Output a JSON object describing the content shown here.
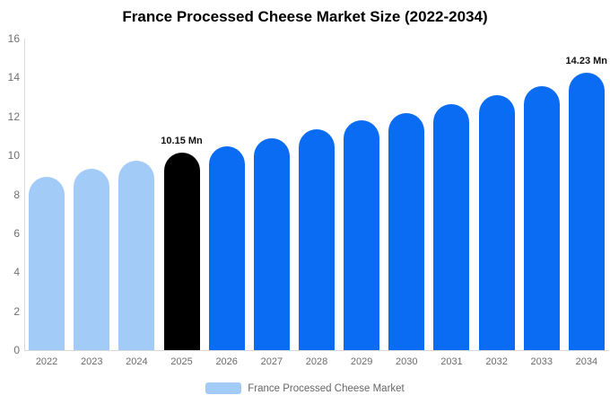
{
  "header": {
    "title": "France Processed Cheese Market Size (2022-2034)"
  },
  "legend": {
    "label": "France Processed Cheese Market",
    "swatch_color": "#A2CBF8"
  },
  "colors": {
    "past_bar": "#A2CBF8",
    "highlight_bar": "#000000",
    "forecast_bar": "#0A6CF3",
    "axis_line": "#D9D9D9",
    "y_tick_label": "#707070",
    "x_tick_label": "#6B6B6B",
    "data_label": "#111111",
    "legend_text": "#666666",
    "background": "#FFFFFF"
  },
  "chart_data": {
    "type": "bar",
    "title": "France Processed Cheese Market Size (2022-2034)",
    "categories": [
      "2022",
      "2023",
      "2024",
      "2025",
      "2026",
      "2027",
      "2028",
      "2029",
      "2030",
      "2031",
      "2032",
      "2033",
      "2034"
    ],
    "values": [
      8.9,
      9.32,
      9.74,
      10.15,
      10.47,
      10.88,
      11.32,
      11.8,
      12.19,
      12.63,
      13.11,
      13.57,
      14.23
    ],
    "unit": "Mn",
    "bar_colors": [
      "#A2CBF8",
      "#A2CBF8",
      "#A2CBF8",
      "#000000",
      "#0A6CF3",
      "#0A6CF3",
      "#0A6CF3",
      "#0A6CF3",
      "#0A6CF3",
      "#0A6CF3",
      "#0A6CF3",
      "#0A6CF3",
      "#0A6CF3"
    ],
    "data_labels": [
      {
        "category": "2025",
        "text": "10.15 Mn"
      },
      {
        "category": "2034",
        "text": "14.23 Mn"
      }
    ],
    "xlabel": "",
    "ylabel": "",
    "ylim": [
      0,
      16
    ],
    "ytick_step": 2,
    "ytick_labels": [
      "0",
      "2",
      "4",
      "6",
      "8",
      "10",
      "12",
      "14",
      "16"
    ],
    "grid": false,
    "legend_position": "bottom",
    "legend_entries": [
      "France Processed Cheese Market"
    ]
  }
}
